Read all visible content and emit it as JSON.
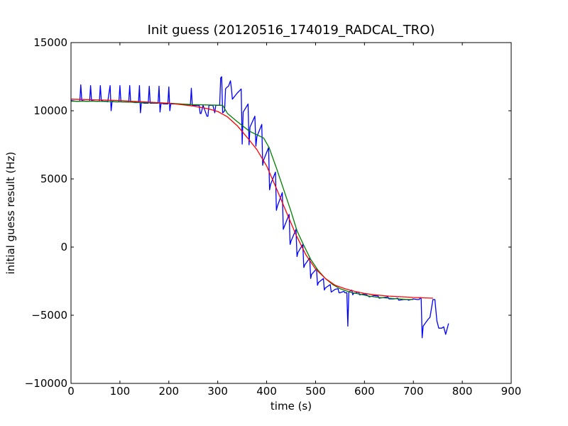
{
  "chart_data": {
    "type": "line",
    "title": "Init guess (20120516_174019_RADCAL_TRO)",
    "xlabel": "time (s)",
    "ylabel": "initial guess result (Hz)",
    "xlim": [
      0,
      900
    ],
    "ylim": [
      -10000,
      15000
    ],
    "xticks": [
      0,
      100,
      200,
      300,
      400,
      500,
      600,
      700,
      800,
      900
    ],
    "yticks": [
      -10000,
      -5000,
      0,
      5000,
      10000,
      15000
    ],
    "xtick_labels": [
      "0",
      "100",
      "200",
      "300",
      "400",
      "500",
      "600",
      "700",
      "800",
      "900"
    ],
    "ytick_labels": [
      "−10000",
      "−5000",
      "0",
      "5000",
      "10000",
      "15000"
    ],
    "grid": false,
    "legend": "none",
    "series": [
      {
        "color": "#0000ff",
        "points": [
          [
            0,
            10750
          ],
          [
            10,
            10700
          ],
          [
            18,
            10700
          ],
          [
            20,
            11900
          ],
          [
            22,
            10750
          ],
          [
            30,
            10700
          ],
          [
            38,
            10700
          ],
          [
            40,
            11850
          ],
          [
            42,
            10750
          ],
          [
            50,
            10700
          ],
          [
            58,
            10700
          ],
          [
            60,
            11850
          ],
          [
            62,
            10750
          ],
          [
            66,
            10700
          ],
          [
            72,
            10700
          ],
          [
            75,
            10650
          ],
          [
            80,
            11850
          ],
          [
            82,
            10000
          ],
          [
            84,
            10700
          ],
          [
            90,
            10650
          ],
          [
            98,
            10650
          ],
          [
            100,
            11850
          ],
          [
            102,
            10650
          ],
          [
            110,
            10650
          ],
          [
            118,
            10650
          ],
          [
            120,
            11850
          ],
          [
            122,
            10650
          ],
          [
            130,
            10600
          ],
          [
            138,
            10600
          ],
          [
            140,
            11850
          ],
          [
            142,
            9850
          ],
          [
            144,
            10600
          ],
          [
            150,
            10550
          ],
          [
            158,
            10550
          ],
          [
            160,
            11800
          ],
          [
            162,
            10550
          ],
          [
            170,
            10550
          ],
          [
            178,
            10550
          ],
          [
            180,
            11800
          ],
          [
            182,
            9900
          ],
          [
            184,
            10550
          ],
          [
            190,
            10500
          ],
          [
            198,
            10500
          ],
          [
            200,
            11750
          ],
          [
            202,
            10000
          ],
          [
            204,
            10500
          ],
          [
            210,
            10500
          ],
          [
            220,
            10500
          ],
          [
            230,
            10450
          ],
          [
            240,
            10450
          ],
          [
            244,
            10400
          ],
          [
            246,
            11650
          ],
          [
            248,
            10400
          ],
          [
            255,
            10400
          ],
          [
            262,
            10400
          ],
          [
            264,
            9800
          ],
          [
            266,
            9800
          ],
          [
            270,
            10400
          ],
          [
            278,
            9600
          ],
          [
            280,
            9600
          ],
          [
            282,
            10400
          ],
          [
            290,
            10400
          ],
          [
            294,
            9850
          ],
          [
            296,
            10400
          ],
          [
            300,
            10400
          ],
          [
            304,
            10400
          ],
          [
            306,
            12400
          ],
          [
            308,
            12500
          ],
          [
            310,
            9850
          ],
          [
            312,
            9900
          ],
          [
            314,
            10000
          ],
          [
            316,
            11600
          ],
          [
            318,
            11700
          ],
          [
            322,
            11800
          ],
          [
            326,
            12200
          ],
          [
            328,
            11600
          ],
          [
            330,
            10850
          ],
          [
            340,
            11300
          ],
          [
            348,
            11600
          ],
          [
            350,
            7550
          ],
          [
            352,
            9900
          ],
          [
            362,
            10500
          ],
          [
            364,
            7500
          ],
          [
            366,
            8800
          ],
          [
            376,
            9600
          ],
          [
            378,
            7400
          ],
          [
            380,
            8100
          ],
          [
            390,
            9000
          ],
          [
            392,
            6000
          ],
          [
            394,
            6400
          ],
          [
            404,
            7300
          ],
          [
            406,
            4200
          ],
          [
            408,
            4600
          ],
          [
            418,
            5500
          ],
          [
            420,
            2700
          ],
          [
            422,
            3000
          ],
          [
            432,
            4000
          ],
          [
            434,
            1300
          ],
          [
            436,
            1500
          ],
          [
            446,
            2400
          ],
          [
            448,
            200
          ],
          [
            450,
            450
          ],
          [
            460,
            1300
          ],
          [
            462,
            -700
          ],
          [
            464,
            -400
          ],
          [
            474,
            200
          ],
          [
            476,
            -1500
          ],
          [
            478,
            -1300
          ],
          [
            488,
            -800
          ],
          [
            490,
            -2300
          ],
          [
            492,
            -2000
          ],
          [
            502,
            -1600
          ],
          [
            504,
            -2800
          ],
          [
            506,
            -2600
          ],
          [
            516,
            -2300
          ],
          [
            518,
            -3150
          ],
          [
            520,
            -3000
          ],
          [
            530,
            -2750
          ],
          [
            532,
            -3300
          ],
          [
            540,
            -3100
          ],
          [
            546,
            -3050
          ],
          [
            548,
            -3350
          ],
          [
            550,
            -3350
          ],
          [
            558,
            -3250
          ],
          [
            560,
            -3350
          ],
          [
            564,
            -3350
          ],
          [
            566,
            -5800
          ],
          [
            568,
            -3300
          ],
          [
            574,
            -3150
          ],
          [
            576,
            -3500
          ],
          [
            578,
            -3400
          ],
          [
            588,
            -3300
          ],
          [
            590,
            -3500
          ],
          [
            600,
            -3450
          ],
          [
            604,
            -3500
          ],
          [
            610,
            -3650
          ],
          [
            620,
            -3550
          ],
          [
            628,
            -3600
          ],
          [
            630,
            -3750
          ],
          [
            640,
            -3700
          ],
          [
            648,
            -3650
          ],
          [
            650,
            -3800
          ],
          [
            660,
            -3800
          ],
          [
            668,
            -3750
          ],
          [
            670,
            -3900
          ],
          [
            680,
            -3850
          ],
          [
            688,
            -3850
          ],
          [
            690,
            -3900
          ],
          [
            700,
            -3800
          ],
          [
            708,
            -3850
          ],
          [
            712,
            -3850
          ],
          [
            714,
            -3700
          ],
          [
            716,
            -3800
          ],
          [
            718,
            -6650
          ],
          [
            720,
            -5800
          ],
          [
            730,
            -5300
          ],
          [
            734,
            -5150
          ],
          [
            740,
            -3850
          ],
          [
            744,
            -3850
          ],
          [
            748,
            -5400
          ],
          [
            752,
            -5950
          ],
          [
            758,
            -5950
          ],
          [
            762,
            -5850
          ],
          [
            766,
            -6400
          ],
          [
            772,
            -5600
          ]
        ]
      },
      {
        "color": "#008000",
        "points": [
          [
            0,
            10700
          ],
          [
            50,
            10700
          ],
          [
            100,
            10650
          ],
          [
            150,
            10600
          ],
          [
            200,
            10550
          ],
          [
            250,
            10450
          ],
          [
            310,
            10400
          ],
          [
            320,
            9800
          ],
          [
            340,
            9200
          ],
          [
            365,
            8500
          ],
          [
            394,
            8000
          ],
          [
            405,
            7300
          ],
          [
            420,
            5800
          ],
          [
            435,
            4200
          ],
          [
            450,
            2600
          ],
          [
            462,
            1200
          ],
          [
            475,
            200
          ],
          [
            490,
            -900
          ],
          [
            505,
            -1700
          ],
          [
            520,
            -2300
          ],
          [
            535,
            -2750
          ],
          [
            550,
            -3050
          ],
          [
            570,
            -3300
          ],
          [
            590,
            -3450
          ],
          [
            610,
            -3600
          ],
          [
            630,
            -3700
          ],
          [
            650,
            -3750
          ],
          [
            670,
            -3800
          ],
          [
            690,
            -3850
          ],
          [
            700,
            -3850
          ]
        ]
      },
      {
        "color": "#ff0000",
        "points": [
          [
            0,
            10850
          ],
          [
            50,
            10800
          ],
          [
            100,
            10750
          ],
          [
            150,
            10650
          ],
          [
            200,
            10550
          ],
          [
            250,
            10350
          ],
          [
            280,
            10150
          ],
          [
            300,
            9950
          ],
          [
            320,
            9550
          ],
          [
            340,
            8900
          ],
          [
            360,
            8050
          ],
          [
            380,
            7150
          ],
          [
            400,
            5950
          ],
          [
            420,
            4300
          ],
          [
            440,
            2600
          ],
          [
            460,
            900
          ],
          [
            480,
            -550
          ],
          [
            500,
            -1600
          ],
          [
            520,
            -2300
          ],
          [
            540,
            -2800
          ],
          [
            560,
            -3050
          ],
          [
            580,
            -3250
          ],
          [
            600,
            -3400
          ],
          [
            620,
            -3500
          ],
          [
            650,
            -3600
          ],
          [
            680,
            -3650
          ],
          [
            700,
            -3700
          ],
          [
            740,
            -3750
          ]
        ]
      }
    ]
  }
}
